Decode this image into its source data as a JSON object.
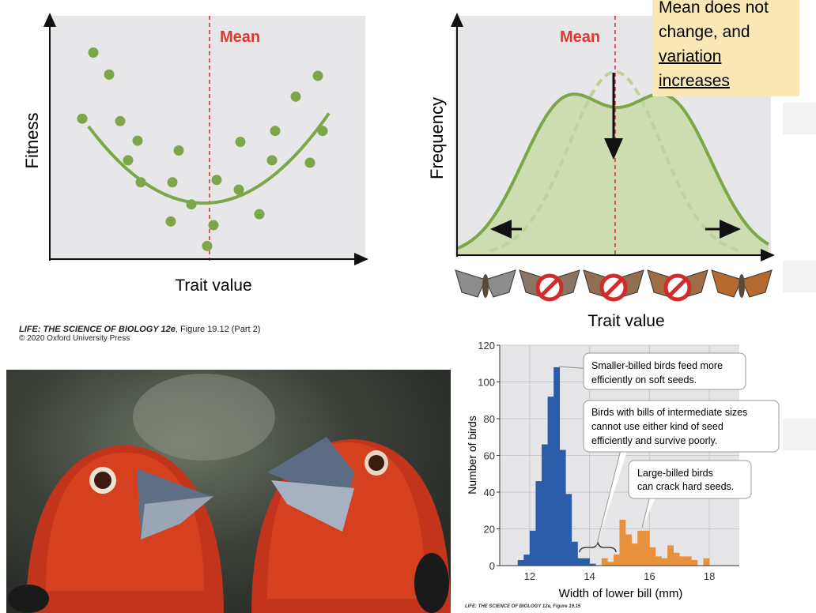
{
  "fitness_plot": {
    "ylabel": "Fitness",
    "xlabel": "Trait value",
    "mean_label": "Mean",
    "points": [
      [
        1.4,
        8.5
      ],
      [
        1.9,
        7.6
      ],
      [
        1.05,
        5.8
      ],
      [
        2.25,
        5.7
      ],
      [
        2.8,
        4.9
      ],
      [
        2.5,
        4.1
      ],
      [
        2.9,
        3.2
      ],
      [
        4.1,
        4.5
      ],
      [
        3.9,
        3.2
      ],
      [
        4.5,
        2.3
      ],
      [
        3.85,
        1.6
      ],
      [
        5.0,
        0.6
      ],
      [
        5.2,
        1.45
      ],
      [
        5.3,
        3.3
      ],
      [
        6.0,
        2.9
      ],
      [
        6.05,
        4.85
      ],
      [
        6.65,
        1.9
      ],
      [
        7.05,
        4.1
      ],
      [
        7.15,
        5.3
      ],
      [
        7.8,
        6.7
      ],
      [
        8.25,
        4.0
      ],
      [
        8.5,
        7.55
      ],
      [
        8.65,
        5.3
      ]
    ],
    "curve_type": "quadratic (disruptive selection)"
  },
  "frequency_plot": {
    "ylabel": "Frequency",
    "xlabel": "Trait value",
    "mean_label": "Mean",
    "moths": [
      {
        "color": "#8d8d8d",
        "prohibited": false
      },
      {
        "color": "#8a7564",
        "prohibited": true
      },
      {
        "color": "#8f6e52",
        "prohibited": true
      },
      {
        "color": "#a06c44",
        "prohibited": true
      },
      {
        "color": "#b56a30",
        "prohibited": false
      }
    ]
  },
  "note": {
    "line1": "Mean does not",
    "line2": "change, and",
    "line3": "variation",
    "line4": "increases"
  },
  "caption_top": {
    "title": "LIFE: THE SCIENCE OF BIOLOGY 12e",
    "figure": ", Figure 19.12 (Part 2)",
    "copyright": "© 2020 Oxford University Press"
  },
  "caption_bottom": "LIFE: THE SCIENCE OF BIOLOGY 12e, Figure 19.15",
  "chart_data": {
    "type": "bar",
    "title": "",
    "xlabel": "Width of lower bill (mm)",
    "ylabel": "Number of birds",
    "xlim": [
      11.0,
      19.0
    ],
    "ylim": [
      0,
      120
    ],
    "xticks": [
      12,
      14,
      16,
      18
    ],
    "yticks": [
      0,
      20,
      40,
      60,
      80,
      100,
      120
    ],
    "grid": true,
    "bin_width": 0.2,
    "series": [
      {
        "name": "Small-billed",
        "color": "#2a5caa",
        "x": [
          11.6,
          11.8,
          12.0,
          12.2,
          12.4,
          12.6,
          12.8,
          13.0,
          13.2,
          13.4,
          13.6,
          13.8,
          14.0
        ],
        "values": [
          3,
          6,
          19,
          46,
          66,
          92,
          108,
          63,
          39,
          13,
          4,
          4,
          1
        ]
      },
      {
        "name": "Large-billed",
        "color": "#e8903a",
        "x": [
          14.4,
          14.6,
          14.8,
          15.0,
          15.2,
          15.4,
          15.6,
          15.8,
          16.0,
          16.2,
          16.4,
          16.6,
          16.8,
          17.0,
          17.2,
          17.4,
          17.6,
          17.8
        ],
        "values": [
          4,
          2,
          6,
          25,
          17,
          12,
          19,
          19,
          10,
          5,
          4,
          11,
          7,
          5,
          5,
          3,
          0,
          4
        ]
      }
    ],
    "annotations": [
      "Smaller-billed birds feed more efficiently on soft seeds.",
      "Birds with bills of intermediate sizes cannot use either kind of seed efficiently and survive poorly.",
      "Large-billed birds can crack hard seeds."
    ]
  }
}
